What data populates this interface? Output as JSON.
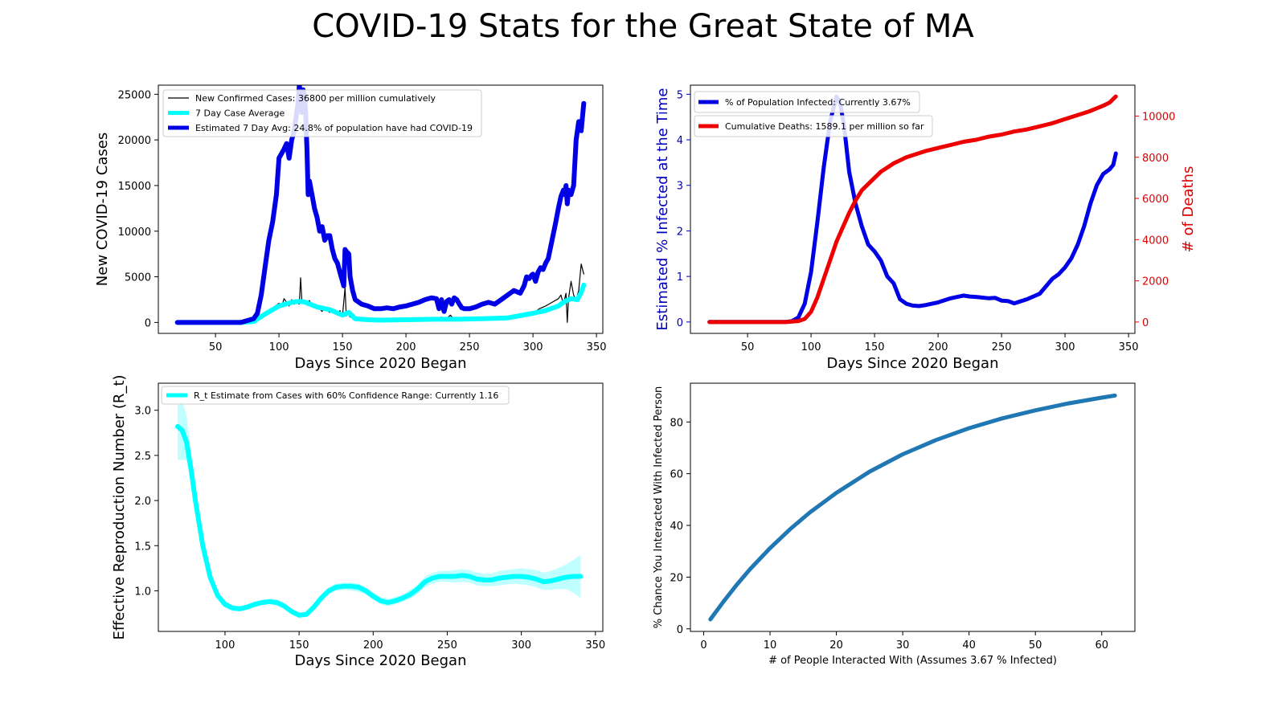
{
  "figure": {
    "title": "COVID-19 Stats for the Great State of MA"
  },
  "colors": {
    "blue": "#0000e6",
    "cyan": "#00ffff",
    "red": "#ee0000",
    "black": "#000000",
    "steel": "#1f77b4",
    "axis_blue": "#0000bb",
    "axis_red": "#dd0000"
  },
  "chart_data": [
    {
      "id": "cases",
      "type": "line",
      "title": "",
      "xlabel": "Days Since 2020 Began",
      "ylabel": "New COVID-19 Cases",
      "xlim": [
        5,
        355
      ],
      "ylim": [
        -1200,
        26000
      ],
      "xticks": [
        50,
        100,
        150,
        200,
        250,
        300,
        350
      ],
      "yticks": [
        0,
        5000,
        10000,
        15000,
        20000,
        25000
      ],
      "legend": "upper-left",
      "series": [
        {
          "name": "New Confirmed Cases: 36800 per million cumulatively",
          "color": "#000000",
          "width": 1.2,
          "x": [
            20,
            70,
            78,
            82,
            86,
            90,
            93,
            96,
            98,
            100,
            102,
            104,
            106,
            108,
            110,
            112,
            114,
            116,
            117,
            118,
            120,
            122,
            124,
            126,
            128,
            130,
            132,
            134,
            136,
            138,
            140,
            142,
            144,
            146,
            148,
            150,
            152,
            153,
            154,
            156,
            158,
            160,
            165,
            170,
            180,
            190,
            200,
            210,
            220,
            225,
            228,
            230,
            235,
            238,
            240,
            245,
            250,
            255,
            260,
            270,
            280,
            285,
            290,
            295,
            300,
            305,
            310,
            315,
            320,
            322,
            324,
            326,
            327,
            328,
            330,
            332,
            334,
            336,
            338,
            340
          ],
          "y": [
            0,
            0,
            120,
            300,
            500,
            900,
            1300,
            1700,
            1900,
            2100,
            1700,
            2600,
            2200,
            1800,
            2500,
            2000,
            2200,
            2000,
            4900,
            2500,
            2200,
            1900,
            2400,
            1700,
            1600,
            1900,
            1500,
            1200,
            1700,
            1300,
            1100,
            1500,
            1100,
            800,
            1300,
            700,
            3800,
            700,
            1000,
            600,
            500,
            500,
            400,
            300,
            250,
            300,
            300,
            350,
            400,
            300,
            600,
            200,
            800,
            300,
            250,
            300,
            300,
            350,
            300,
            450,
            550,
            600,
            700,
            800,
            1000,
            1500,
            1800,
            2200,
            2600,
            3000,
            2000,
            3200,
            0,
            2600,
            4500,
            3000,
            2500,
            3500,
            6400,
            5300
          ]
        },
        {
          "name": "7 Day Case Average",
          "color": "#00ffff",
          "width": 6,
          "x": [
            20,
            70,
            80,
            90,
            100,
            110,
            115,
            120,
            130,
            140,
            150,
            155,
            160,
            170,
            180,
            200,
            220,
            240,
            260,
            280,
            300,
            310,
            320,
            325,
            330,
            335,
            338,
            340
          ],
          "y": [
            0,
            0,
            100,
            1000,
            1800,
            2200,
            2300,
            2250,
            1700,
            1400,
            800,
            1100,
            400,
            300,
            250,
            300,
            350,
            350,
            400,
            500,
            1000,
            1300,
            1800,
            2300,
            2600,
            2500,
            3300,
            4100
          ]
        },
        {
          "name": "Estimated 7 Day Avg: 24.8% of population have had COVID-19",
          "color": "#0000e6",
          "width": 6,
          "x": [
            20,
            70,
            80,
            83,
            86,
            89,
            92,
            95,
            98,
            100,
            102,
            104,
            106,
            108,
            110,
            112,
            114,
            115,
            116,
            117,
            118,
            119,
            120,
            121,
            122,
            123,
            124,
            126,
            128,
            130,
            132,
            134,
            136,
            138,
            140,
            142,
            144,
            146,
            148,
            150,
            151,
            152,
            153,
            155,
            156,
            158,
            160,
            165,
            170,
            175,
            180,
            185,
            190,
            195,
            200,
            205,
            210,
            215,
            220,
            224,
            226,
            228,
            230,
            232,
            234,
            236,
            238,
            240,
            242,
            244,
            246,
            250,
            255,
            260,
            265,
            270,
            275,
            280,
            285,
            290,
            293,
            295,
            297,
            299,
            300,
            302,
            304,
            306,
            308,
            310,
            312,
            315,
            318,
            320,
            322,
            324,
            325,
            326,
            327,
            328,
            330,
            332,
            334,
            336,
            338,
            340
          ],
          "y": [
            0,
            0,
            400,
            1000,
            3000,
            6000,
            9000,
            11000,
            14000,
            18000,
            18500,
            19000,
            19600,
            18000,
            20000,
            21000,
            23000,
            24000,
            26000,
            25000,
            23000,
            25500,
            25000,
            23000,
            19000,
            14000,
            15500,
            14000,
            12500,
            11500,
            10000,
            10500,
            9000,
            9500,
            9500,
            8000,
            7000,
            6500,
            5500,
            4500,
            4000,
            8000,
            7800,
            7500,
            5000,
            3500,
            2500,
            2000,
            1800,
            1500,
            1500,
            1600,
            1500,
            1700,
            1800,
            2000,
            2200,
            2500,
            2700,
            2600,
            1500,
            2500,
            1200,
            2300,
            2500,
            2000,
            2700,
            2500,
            2000,
            1600,
            1500,
            1500,
            1700,
            2000,
            2200,
            2000,
            2500,
            3000,
            3500,
            3200,
            4000,
            5000,
            4800,
            5200,
            5300,
            4500,
            5500,
            6000,
            5800,
            6500,
            7000,
            9000,
            11000,
            12500,
            13800,
            14500,
            14000,
            15000,
            13000,
            14500,
            14000,
            15000,
            20000,
            22000,
            21000,
            24000
          ]
        }
      ]
    },
    {
      "id": "infected",
      "type": "line",
      "title": "",
      "xlabel": "Days Since 2020 Began",
      "ylabel": "Estimated % Infected at the Time",
      "ylabel_right": "# of Deaths",
      "xlim": [
        5,
        355
      ],
      "ylim": [
        -0.25,
        5.2
      ],
      "ylim_right": [
        -550,
        11500
      ],
      "xticks": [
        50,
        100,
        150,
        200,
        250,
        300,
        350
      ],
      "yticks": [
        0,
        1,
        2,
        3,
        4,
        5
      ],
      "yticks_right": [
        0,
        2000,
        4000,
        6000,
        8000,
        10000
      ],
      "legend": "upper-left",
      "series": [
        {
          "name": "% of Population Infected: Currently 3.67%",
          "axis": "left",
          "color": "#0000e6",
          "width": 5,
          "x": [
            20,
            80,
            85,
            90,
            95,
            100,
            105,
            110,
            115,
            120,
            123,
            126,
            130,
            135,
            140,
            145,
            150,
            155,
            160,
            165,
            170,
            175,
            180,
            185,
            190,
            200,
            210,
            220,
            225,
            230,
            240,
            245,
            250,
            255,
            260,
            270,
            280,
            290,
            295,
            300,
            305,
            310,
            315,
            320,
            325,
            330,
            335,
            338,
            340
          ],
          "y": [
            0,
            0,
            0.02,
            0.1,
            0.4,
            1.1,
            2.2,
            3.4,
            4.4,
            4.95,
            4.8,
            4.3,
            3.3,
            2.6,
            2.1,
            1.7,
            1.55,
            1.35,
            1.0,
            0.85,
            0.5,
            0.4,
            0.36,
            0.35,
            0.37,
            0.43,
            0.52,
            0.58,
            0.56,
            0.55,
            0.52,
            0.53,
            0.47,
            0.46,
            0.41,
            0.5,
            0.62,
            0.95,
            1.05,
            1.2,
            1.4,
            1.7,
            2.1,
            2.6,
            3.0,
            3.25,
            3.35,
            3.45,
            3.7
          ]
        },
        {
          "name": "Cumulative Deaths: 1589.1 per million so far",
          "axis": "right",
          "color": "#ee0000",
          "width": 5,
          "x": [
            20,
            80,
            90,
            95,
            100,
            105,
            110,
            115,
            120,
            125,
            130,
            135,
            140,
            145,
            150,
            155,
            160,
            165,
            170,
            175,
            180,
            190,
            200,
            210,
            220,
            230,
            240,
            250,
            260,
            270,
            280,
            290,
            300,
            310,
            320,
            330,
            335,
            340
          ],
          "y": [
            0,
            0,
            50,
            150,
            500,
            1200,
            2100,
            3000,
            3900,
            4600,
            5300,
            5900,
            6400,
            6700,
            7000,
            7300,
            7500,
            7700,
            7850,
            8000,
            8100,
            8300,
            8450,
            8600,
            8750,
            8850,
            9000,
            9100,
            9250,
            9350,
            9500,
            9650,
            9850,
            10050,
            10250,
            10500,
            10650,
            10950
          ]
        }
      ]
    },
    {
      "id": "rt",
      "type": "line",
      "title": "",
      "xlabel": "Days Since 2020 Began",
      "ylabel": "Effective Reproduction Number (R_t)",
      "xlim": [
        55,
        355
      ],
      "ylim": [
        0.55,
        3.3
      ],
      "xticks": [
        100,
        150,
        200,
        250,
        300,
        350
      ],
      "yticks": [
        1.0,
        1.5,
        2.0,
        2.5,
        3.0
      ],
      "legend": "upper-left",
      "series": [
        {
          "name": "R_t Estimate from Cases with 60% Confidence Range: Currently 1.16",
          "color": "#00ffff",
          "width": 6,
          "band": true,
          "x": [
            68,
            71,
            74,
            77,
            80,
            85,
            90,
            95,
            100,
            105,
            110,
            115,
            120,
            125,
            130,
            135,
            140,
            145,
            150,
            155,
            160,
            165,
            170,
            175,
            180,
            185,
            190,
            195,
            200,
            205,
            210,
            215,
            220,
            225,
            230,
            235,
            240,
            245,
            250,
            255,
            260,
            265,
            270,
            275,
            280,
            285,
            290,
            295,
            300,
            305,
            310,
            315,
            320,
            325,
            330,
            335,
            340
          ],
          "y": [
            2.82,
            2.78,
            2.65,
            2.35,
            2.0,
            1.5,
            1.15,
            0.95,
            0.85,
            0.81,
            0.8,
            0.82,
            0.85,
            0.87,
            0.88,
            0.87,
            0.83,
            0.77,
            0.73,
            0.74,
            0.82,
            0.92,
            1.0,
            1.04,
            1.05,
            1.05,
            1.04,
            1.0,
            0.94,
            0.89,
            0.87,
            0.89,
            0.92,
            0.96,
            1.02,
            1.1,
            1.14,
            1.16,
            1.16,
            1.16,
            1.17,
            1.16,
            1.13,
            1.12,
            1.12,
            1.14,
            1.15,
            1.16,
            1.16,
            1.15,
            1.13,
            1.1,
            1.11,
            1.13,
            1.15,
            1.16,
            1.16
          ],
          "lower": [
            2.45,
            2.45,
            2.45,
            2.2,
            1.9,
            1.43,
            1.1,
            0.91,
            0.81,
            0.78,
            0.77,
            0.79,
            0.82,
            0.84,
            0.85,
            0.84,
            0.8,
            0.74,
            0.7,
            0.71,
            0.79,
            0.88,
            0.96,
            1.0,
            1.01,
            1.0,
            0.99,
            0.96,
            0.9,
            0.85,
            0.83,
            0.85,
            0.88,
            0.91,
            0.97,
            1.04,
            1.08,
            1.1,
            1.1,
            1.09,
            1.1,
            1.09,
            1.06,
            1.05,
            1.05,
            1.06,
            1.07,
            1.08,
            1.07,
            1.06,
            1.04,
            1.01,
            1.01,
            1.02,
            1.02,
            0.98,
            0.92
          ],
          "upper": [
            3.05,
            3.1,
            2.95,
            2.55,
            2.12,
            1.58,
            1.21,
            0.99,
            0.89,
            0.84,
            0.83,
            0.85,
            0.88,
            0.9,
            0.91,
            0.9,
            0.86,
            0.8,
            0.76,
            0.77,
            0.85,
            0.96,
            1.04,
            1.08,
            1.09,
            1.09,
            1.08,
            1.04,
            0.98,
            0.93,
            0.91,
            0.93,
            0.96,
            1.01,
            1.07,
            1.16,
            1.2,
            1.22,
            1.22,
            1.23,
            1.24,
            1.23,
            1.2,
            1.19,
            1.19,
            1.22,
            1.23,
            1.24,
            1.25,
            1.24,
            1.23,
            1.2,
            1.22,
            1.25,
            1.29,
            1.34,
            1.4
          ]
        }
      ]
    },
    {
      "id": "chance",
      "type": "line",
      "title": "",
      "xlabel": "# of People Interacted With (Assumes 3.67 % Infected)",
      "ylabel": "% Chance You Interacted With Infected Person",
      "xlim": [
        -2,
        65
      ],
      "ylim": [
        -1,
        95
      ],
      "xticks": [
        0,
        10,
        20,
        30,
        40,
        50,
        60
      ],
      "yticks": [
        0,
        20,
        40,
        60,
        80
      ],
      "legend": "none",
      "series": [
        {
          "name": "",
          "color": "#1f77b4",
          "width": 5,
          "x": [
            1,
            3,
            5,
            7,
            10,
            13,
            16,
            20,
            25,
            30,
            35,
            40,
            45,
            50,
            55,
            60,
            62
          ],
          "y": [
            3.67,
            10.6,
            17.1,
            23.1,
            31.2,
            38.5,
            45.0,
            52.6,
            60.8,
            67.5,
            73.0,
            77.6,
            81.4,
            84.5,
            87.2,
            89.4,
            90.2
          ]
        }
      ]
    }
  ]
}
